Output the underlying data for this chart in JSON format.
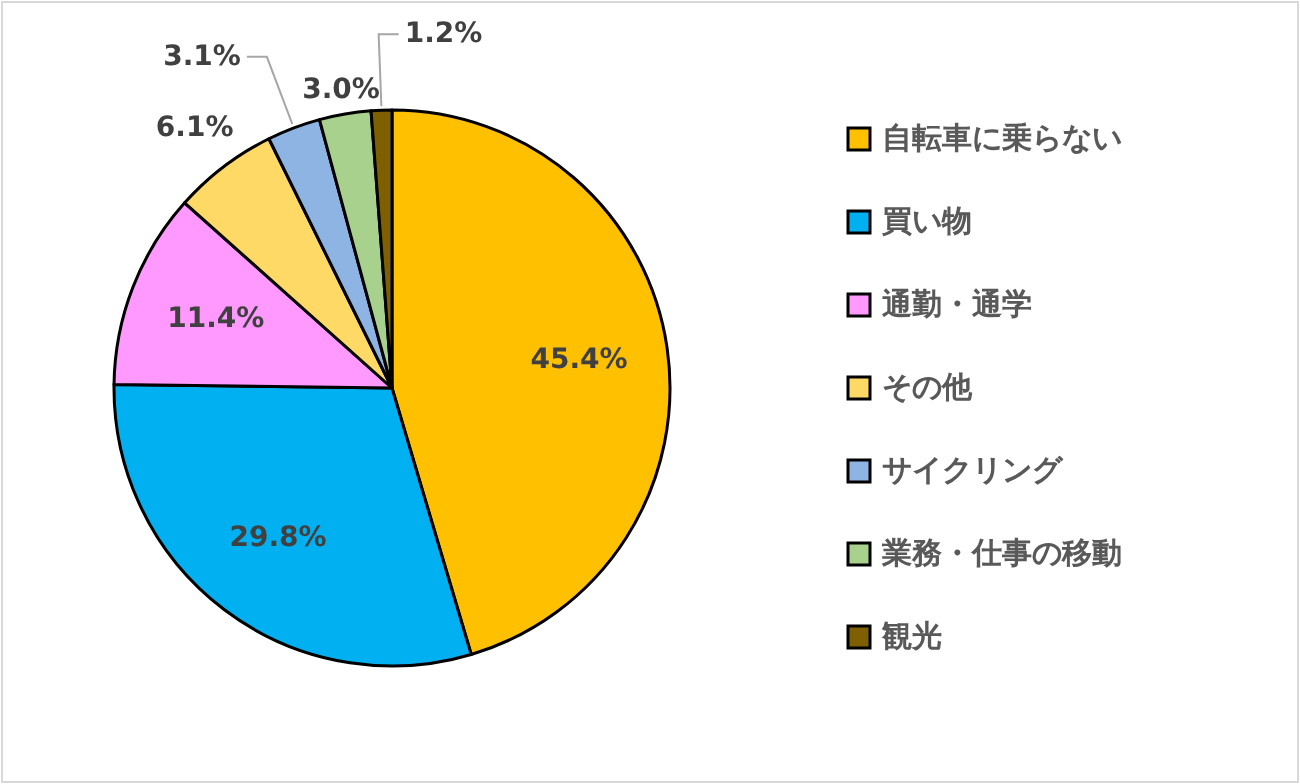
{
  "chart_data": {
    "type": "pie",
    "categories": [
      "自転車に乗らない",
      "買い物",
      "通勤・通学",
      "その他",
      "サイクリング",
      "業務・仕事の移動",
      "観光"
    ],
    "values": [
      45.4,
      29.8,
      11.4,
      6.1,
      3.1,
      3.0,
      1.2
    ],
    "colors": [
      "#ffc000",
      "#00b0f0",
      "#ff99ff",
      "#ffd966",
      "#8db4e2",
      "#a9d18e",
      "#7f6000"
    ],
    "value_labels": [
      "45.4%",
      "29.8%",
      "11.4%",
      "6.1%",
      "3.1%",
      "3.0%",
      "1.2%"
    ],
    "legend": "right"
  }
}
